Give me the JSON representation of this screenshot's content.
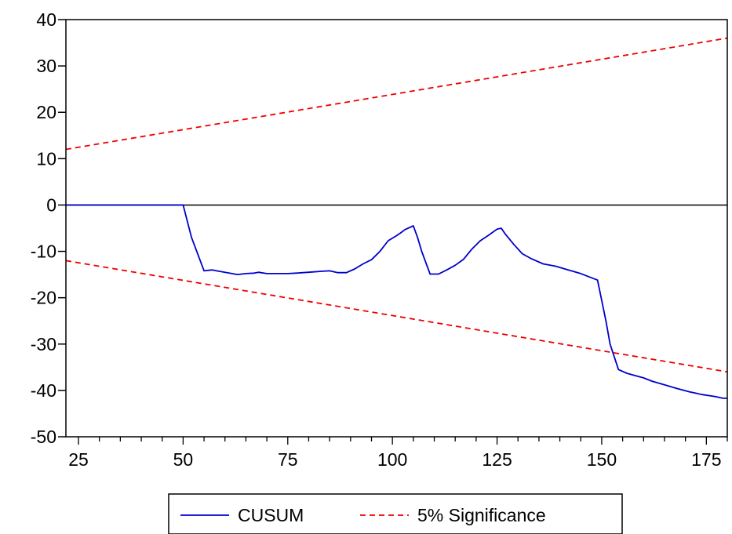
{
  "chart_data": {
    "type": "line",
    "title": "",
    "xlabel": "",
    "ylabel": "",
    "xlim": [
      22,
      180
    ],
    "ylim": [
      -50,
      40
    ],
    "x_ticks": [
      25,
      50,
      75,
      100,
      125,
      150,
      175
    ],
    "x_tick_labels": [
      "25",
      "50",
      "75",
      "100",
      "125",
      "150",
      "175"
    ],
    "y_ticks": [
      40,
      30,
      20,
      10,
      0,
      -10,
      -20,
      -30,
      -40,
      -50
    ],
    "y_tick_labels": [
      "40",
      "30",
      "20",
      "10",
      "0",
      "-10",
      "-20",
      "-30",
      "-40",
      "-50"
    ],
    "zero_line": true,
    "grid": false,
    "legend_position": "bottom-center",
    "series": [
      {
        "name": "CUSUM",
        "color": "#0000cc",
        "style": "solid",
        "points": [
          [
            22,
            0
          ],
          [
            30,
            0
          ],
          [
            40,
            0
          ],
          [
            50,
            0
          ],
          [
            52,
            -7
          ],
          [
            55,
            -14.2
          ],
          [
            57,
            -14
          ],
          [
            58,
            -14.2
          ],
          [
            60,
            -14.5
          ],
          [
            63,
            -15
          ],
          [
            65,
            -14.8
          ],
          [
            67,
            -14.7
          ],
          [
            68,
            -14.5
          ],
          [
            70,
            -14.8
          ],
          [
            73,
            -14.8
          ],
          [
            75,
            -14.8
          ],
          [
            77,
            -14.7
          ],
          [
            80,
            -14.5
          ],
          [
            83,
            -14.3
          ],
          [
            85,
            -14.2
          ],
          [
            87,
            -14.6
          ],
          [
            89,
            -14.6
          ],
          [
            91,
            -13.8
          ],
          [
            93,
            -12.7
          ],
          [
            95,
            -11.8
          ],
          [
            97,
            -10
          ],
          [
            99,
            -7.7
          ],
          [
            101,
            -6.6
          ],
          [
            102,
            -6
          ],
          [
            103,
            -5.3
          ],
          [
            105,
            -4.5
          ],
          [
            106,
            -7
          ],
          [
            107,
            -10
          ],
          [
            109,
            -14.9
          ],
          [
            111,
            -14.9
          ],
          [
            113,
            -14
          ],
          [
            115,
            -13
          ],
          [
            117,
            -11.7
          ],
          [
            119,
            -9.5
          ],
          [
            121,
            -7.7
          ],
          [
            123,
            -6.5
          ],
          [
            125,
            -5.2
          ],
          [
            126,
            -5
          ],
          [
            127,
            -6.3
          ],
          [
            129,
            -8.5
          ],
          [
            131,
            -10.5
          ],
          [
            133,
            -11.5
          ],
          [
            136,
            -12.7
          ],
          [
            139,
            -13.2
          ],
          [
            142,
            -14
          ],
          [
            145,
            -14.8
          ],
          [
            147,
            -15.5
          ],
          [
            149,
            -16.2
          ],
          [
            151,
            -25
          ],
          [
            152,
            -30
          ],
          [
            154,
            -35.5
          ],
          [
            156,
            -36.3
          ],
          [
            158,
            -36.8
          ],
          [
            160,
            -37.3
          ],
          [
            162,
            -38
          ],
          [
            165,
            -38.8
          ],
          [
            168,
            -39.6
          ],
          [
            171,
            -40.3
          ],
          [
            174,
            -40.9
          ],
          [
            177,
            -41.3
          ],
          [
            179,
            -41.7
          ],
          [
            180,
            -41.7
          ]
        ]
      },
      {
        "name": "5% Significance",
        "color": "#ee0000",
        "style": "dashed",
        "bound": "upper",
        "points": [
          [
            22,
            12
          ],
          [
            180,
            36
          ]
        ]
      },
      {
        "name": "5% Significance",
        "color": "#ee0000",
        "style": "dashed",
        "bound": "lower",
        "points": [
          [
            22,
            -12
          ],
          [
            180,
            -36
          ]
        ]
      }
    ],
    "legend": {
      "entries": [
        {
          "label": "CUSUM",
          "color": "#0000cc",
          "style": "solid"
        },
        {
          "label": "5% Significance",
          "color": "#ee0000",
          "style": "dashed"
        }
      ]
    }
  }
}
